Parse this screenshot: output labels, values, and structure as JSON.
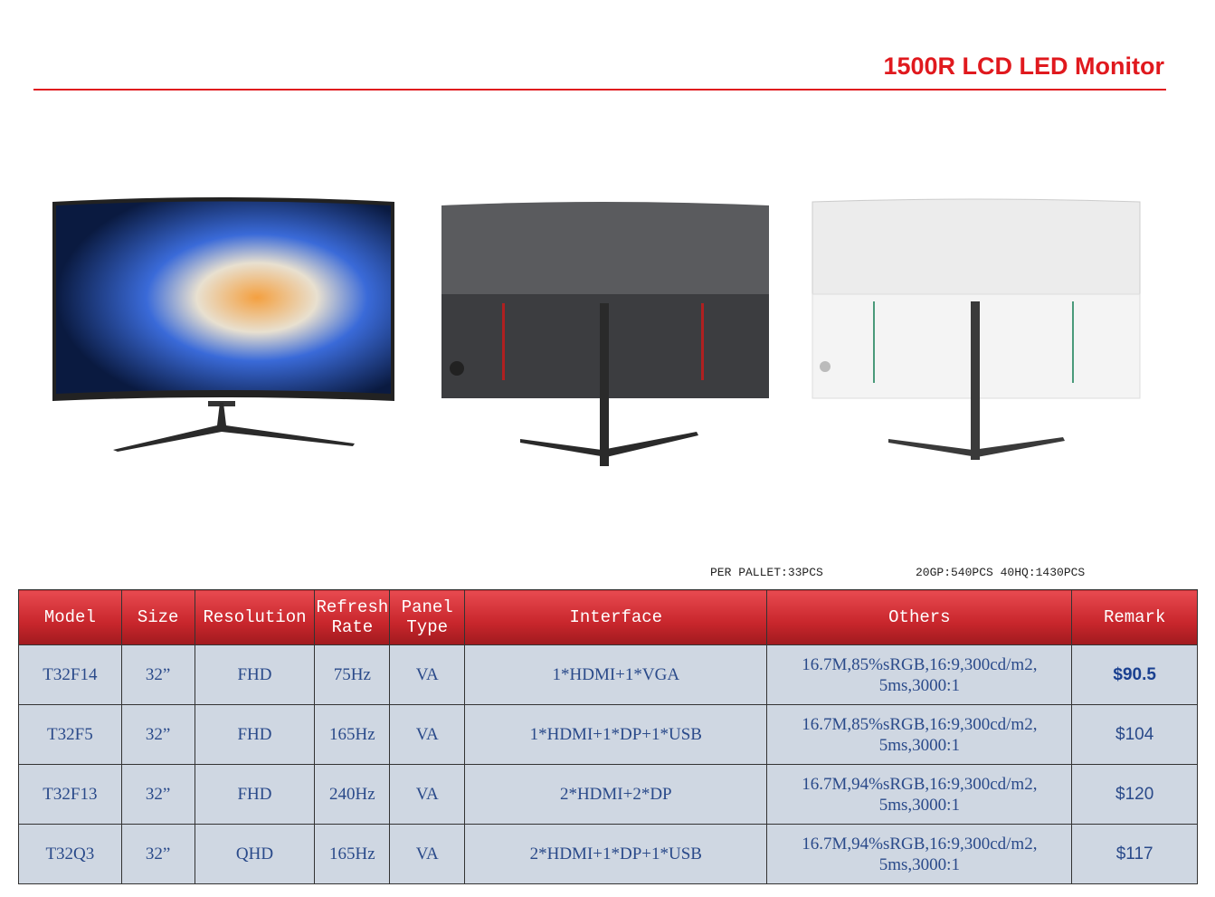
{
  "header": {
    "title": "1500R LCD LED Monitor"
  },
  "images": [
    {
      "name": "monitor-front"
    },
    {
      "name": "monitor-back-black"
    },
    {
      "name": "monitor-back-white"
    }
  ],
  "packing": {
    "pallet": "PER PALLET:33PCS",
    "container": "20GP:540PCS  40HQ:1430PCS"
  },
  "table": {
    "headers": [
      "Model",
      "Size",
      "Resolution",
      "Refresh Rate",
      "Panel Type",
      "Interface",
      "Others",
      "Remark"
    ],
    "rows": [
      [
        "T32F14",
        "32”",
        "FHD",
        "75Hz",
        "VA",
        "1*HDMI+1*VGA",
        "16.7M,85%sRGB,16:9,300cd/m2, 5ms,3000:1",
        "$90.5"
      ],
      [
        "T32F5",
        "32”",
        "FHD",
        "165Hz",
        "VA",
        "1*HDMI+1*DP+1*USB",
        "16.7M,85%sRGB,16:9,300cd/m2, 5ms,3000:1",
        "$104"
      ],
      [
        "T32F13",
        "32”",
        "FHD",
        "240Hz",
        "VA",
        "2*HDMI+2*DP",
        "16.7M,94%sRGB,16:9,300cd/m2, 5ms,3000:1",
        "$120"
      ],
      [
        "T32Q3",
        "32”",
        "QHD",
        "165Hz",
        "VA",
        "2*HDMI+1*DP+1*USB",
        "16.7M,94%sRGB,16:9,300cd/m2, 5ms,3000:1",
        "$117"
      ]
    ]
  },
  "colors": {
    "accent": "#e0191e",
    "header_bg": "#c8262c",
    "cell_bg": "#cfd7e2",
    "cell_text": "#2a4a8a"
  }
}
